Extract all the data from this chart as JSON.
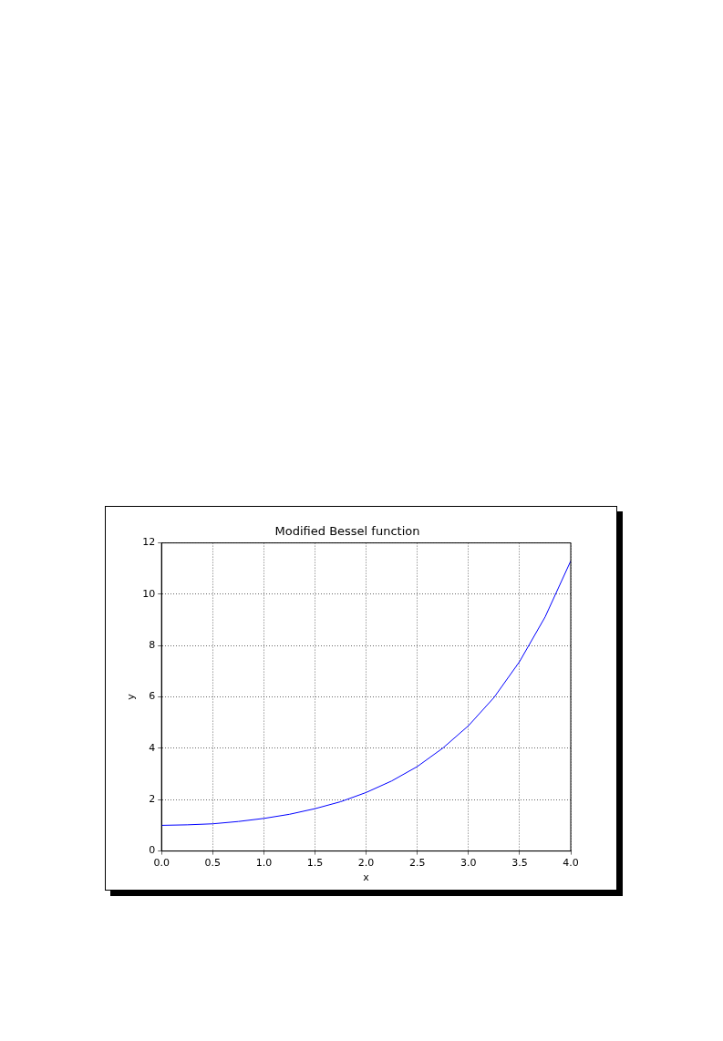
{
  "chart_data": {
    "type": "line",
    "title": "Modified Bessel function",
    "xlabel": "x",
    "ylabel": "y",
    "x": [
      0,
      0.25,
      0.5,
      0.75,
      1,
      1.25,
      1.5,
      1.75,
      2,
      2.25,
      2.5,
      2.75,
      3,
      3.25,
      3.5,
      3.75,
      4
    ],
    "series": [
      {
        "color": "#0000ff",
        "values": [
          1.0,
          1.02,
          1.06,
          1.15,
          1.27,
          1.43,
          1.65,
          1.92,
          2.28,
          2.73,
          3.29,
          4.01,
          4.88,
          5.98,
          7.38,
          9.12,
          11.3
        ]
      }
    ],
    "xlim": [
      0,
      4
    ],
    "xticks": [
      {
        "value": 0,
        "label": "0.0"
      },
      {
        "value": 0.5,
        "label": "0.5"
      },
      {
        "value": 1,
        "label": "1.0"
      },
      {
        "value": 1.5,
        "label": "1.5"
      },
      {
        "value": 2,
        "label": "2.0"
      },
      {
        "value": 2.5,
        "label": "2.5"
      },
      {
        "value": 3,
        "label": "3.0"
      },
      {
        "value": 3.5,
        "label": "3.5"
      },
      {
        "value": 4,
        "label": "4.0"
      }
    ],
    "ylim": [
      0,
      12
    ],
    "yticks": [
      0,
      2,
      4,
      6,
      8,
      10,
      12
    ],
    "grid": true,
    "legend": false,
    "marker": "none",
    "line_style": "solid"
  }
}
